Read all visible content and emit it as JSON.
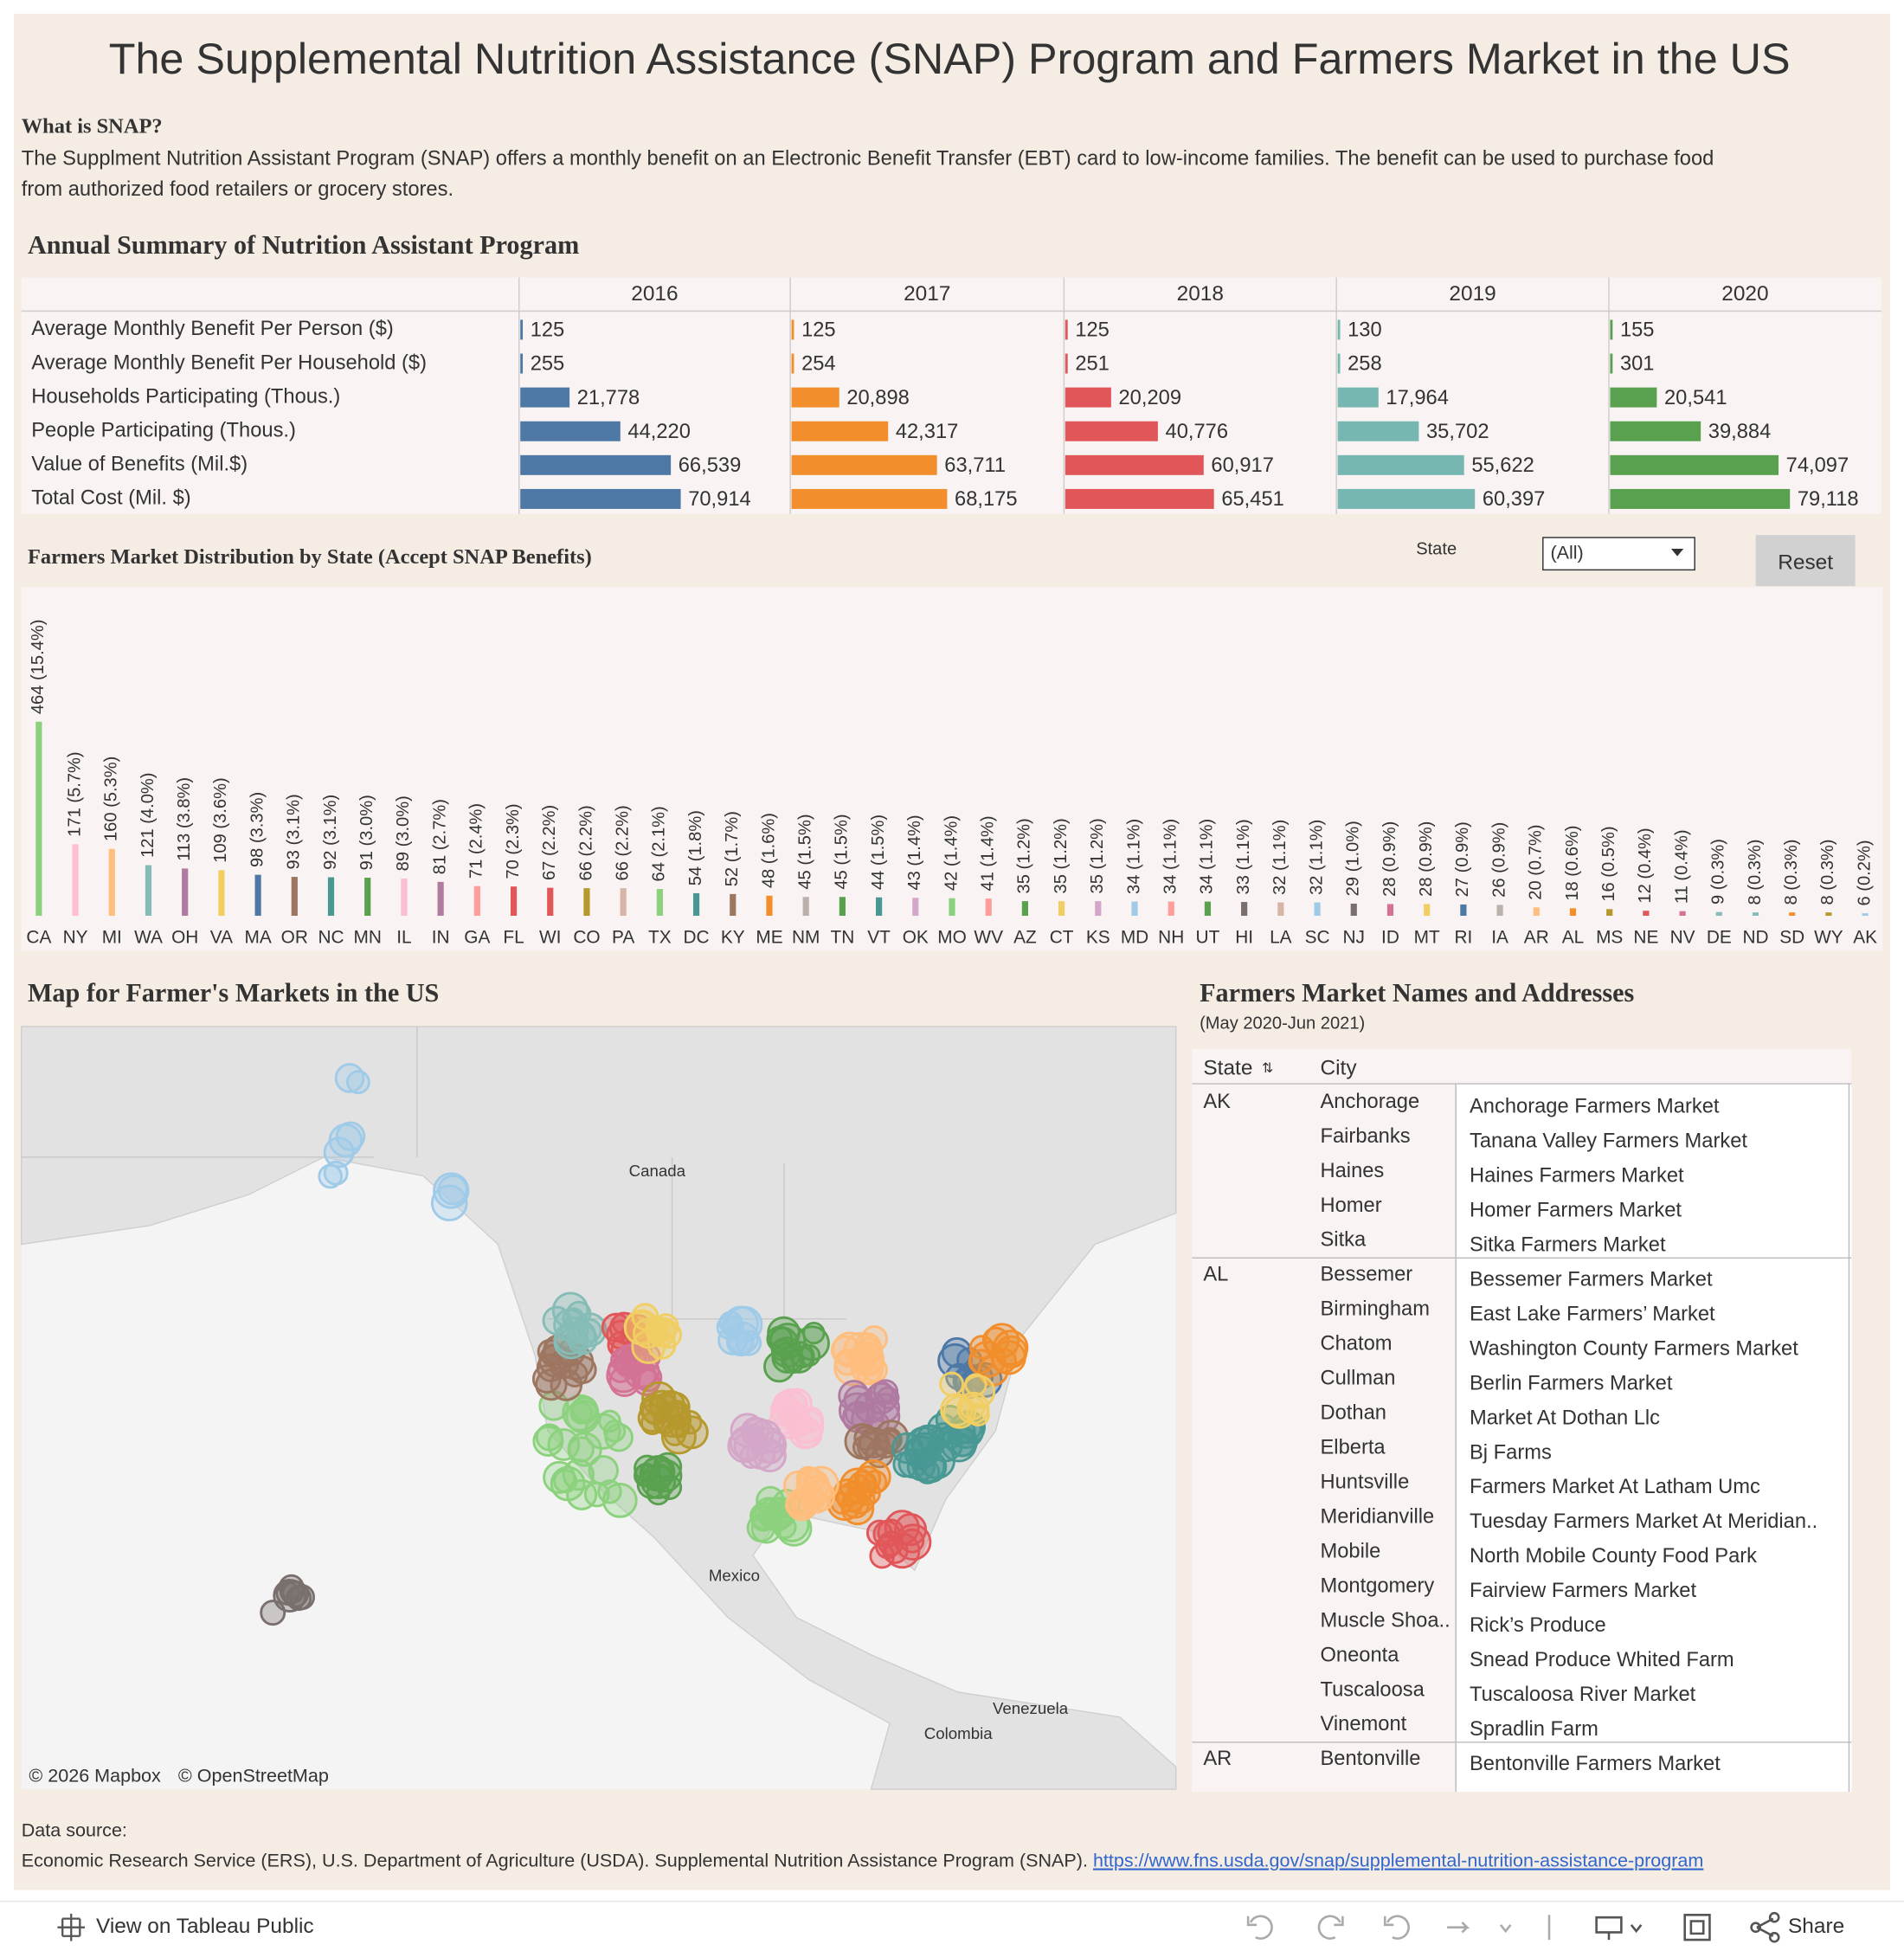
{
  "header": {
    "title": "The Supplemental Nutrition Assistance (SNAP) Program and Farmers Market in the US",
    "intro_heading": "What is SNAP?",
    "intro_lines": [
      "The Supplment Nutrition Assistant Program (SNAP) offers a monthly benefit on an Electronic Benefit Transfer (EBT) card to low-income families. The benefit can be used to purchase food",
      "from authorized food retailers or grocery stores."
    ]
  },
  "chart_data": [
    {
      "type": "bar",
      "orientation": "horizontal",
      "title": "Annual Summary of Nutrition Assistant Program",
      "categories": [
        "Average Monthly Benefit Per Person ($)",
        "Average Monthly Benefit Per Household ($)",
        "Households Participating (Thous.)",
        "People Participating (Thous.)",
        "Value of Benefits (Mil.$)",
        "Total Cost (Mil. $)"
      ],
      "series": [
        {
          "name": "2016",
          "color": "#4e79a7",
          "values": [
            125,
            255,
            21778,
            44220,
            66539,
            70914
          ],
          "value_labels": [
            "125",
            "255",
            "21,778",
            "44,220",
            "66,539",
            "70,914"
          ]
        },
        {
          "name": "2017",
          "color": "#f28e2b",
          "values": [
            125,
            254,
            20898,
            42317,
            63711,
            68175
          ],
          "value_labels": [
            "125",
            "254",
            "20,898",
            "42,317",
            "63,711",
            "68,175"
          ]
        },
        {
          "name": "2018",
          "color": "#e15759",
          "values": [
            125,
            251,
            20209,
            40776,
            60917,
            65451
          ],
          "value_labels": [
            "125",
            "251",
            "20,209",
            "40,776",
            "60,917",
            "65,451"
          ]
        },
        {
          "name": "2019",
          "color": "#76b7b2",
          "values": [
            130,
            258,
            17964,
            35702,
            55622,
            60397
          ],
          "value_labels": [
            "130",
            "258",
            "17,964",
            "35,702",
            "55,622",
            "60,397"
          ]
        },
        {
          "name": "2020",
          "color": "#59a14f",
          "values": [
            155,
            301,
            20541,
            39884,
            74097,
            79118
          ],
          "value_labels": [
            "155",
            "301",
            "20,541",
            "39,884",
            "74,097",
            "79,118"
          ]
        }
      ]
    },
    {
      "type": "bar",
      "orientation": "vertical",
      "title": "Farmers Market Distribution by State (Accept SNAP Benefits)",
      "categories": [
        "CA",
        "NY",
        "MI",
        "WA",
        "OH",
        "VA",
        "MA",
        "OR",
        "NC",
        "MN",
        "IL",
        "IN",
        "GA",
        "FL",
        "WI",
        "CO",
        "PA",
        "TX",
        "DC",
        "KY",
        "ME",
        "NM",
        "TN",
        "VT",
        "OK",
        "MO",
        "WV",
        "AZ",
        "CT",
        "KS",
        "MD",
        "NH",
        "UT",
        "HI",
        "LA",
        "SC",
        "NJ",
        "ID",
        "MT",
        "RI",
        "IA",
        "AR",
        "AL",
        "MS",
        "NE",
        "NV",
        "DE",
        "ND",
        "SD",
        "WY",
        "AK"
      ],
      "values": [
        464,
        171,
        160,
        121,
        113,
        109,
        98,
        93,
        92,
        91,
        89,
        81,
        71,
        70,
        67,
        66,
        66,
        64,
        54,
        52,
        48,
        45,
        45,
        44,
        43,
        42,
        41,
        35,
        35,
        35,
        34,
        34,
        34,
        33,
        32,
        32,
        29,
        28,
        28,
        27,
        26,
        20,
        18,
        16,
        12,
        11,
        9,
        8,
        8,
        8,
        6
      ],
      "value_labels": [
        "464 (15.4%)",
        "171 (5.7%)",
        "160 (5.3%)",
        "121 (4.0%)",
        "113 (3.8%)",
        "109 (3.6%)",
        "98 (3.3%)",
        "93 (3.1%)",
        "92 (3.1%)",
        "91 (3.0%)",
        "89 (3.0%)",
        "81 (2.7%)",
        "71 (2.4%)",
        "70 (2.3%)",
        "67 (2.2%)",
        "66 (2.2%)",
        "66 (2.2%)",
        "64 (2.1%)",
        "54 (1.8%)",
        "52 (1.7%)",
        "48 (1.6%)",
        "45 (1.5%)",
        "45 (1.5%)",
        "44 (1.5%)",
        "43 (1.4%)",
        "42 (1.4%)",
        "41 (1.4%)",
        "35 (1.2%)",
        "35 (1.2%)",
        "35 (1.2%)",
        "34 (1.1%)",
        "34 (1.1%)",
        "34 (1.1%)",
        "33 (1.1%)",
        "32 (1.1%)",
        "32 (1.1%)",
        "29 (1.0%)",
        "28 (0.9%)",
        "28 (0.9%)",
        "27 (0.9%)",
        "26 (0.9%)",
        "20 (0.7%)",
        "18 (0.6%)",
        "16 (0.5%)",
        "12 (0.4%)",
        "11 (0.4%)",
        "9 (0.3%)",
        "8 (0.3%)",
        "8 (0.3%)",
        "8 (0.3%)",
        "6 (0.2%)"
      ],
      "colors": [
        "#8cd17d",
        "#ffbed2",
        "#ffbe7d",
        "#86bcb6",
        "#b07aa1",
        "#f1ce63",
        "#4e79a7",
        "#9d7660",
        "#499894",
        "#59a14f",
        "#fabfd2",
        "#b07aa1",
        "#ff9d9a",
        "#e15759",
        "#e15759",
        "#b6992d",
        "#d7b5a6",
        "#8cd17d",
        "#499894",
        "#9d7660",
        "#f28e2b",
        "#bab0ac",
        "#59a14f",
        "#499894",
        "#d4a6c8",
        "#8cd17d",
        "#ff9d9a",
        "#59a14f",
        "#f1ce63",
        "#d4a6c8",
        "#a0cbe8",
        "#ff9d9a",
        "#59a14f",
        "#79706e",
        "#d7b5a6",
        "#a0cbe8",
        "#79706e",
        "#d37295",
        "#f1ce63",
        "#4e79a7",
        "#bab0ac",
        "#ffbe7d",
        "#f28e2b",
        "#b6992d",
        "#e15759",
        "#d37295",
        "#86bcb6",
        "#86bcb6",
        "#f28e2b",
        "#b6992d",
        "#a0cbe8"
      ]
    }
  ],
  "filter": {
    "label": "State",
    "value": "(All)",
    "button": "Reset"
  },
  "map": {
    "title": "Map for Farmer's Markets in the US",
    "labels": [
      "Canada",
      "Mexico",
      "Venezuela",
      "Colombia"
    ],
    "attribution": [
      "© 2026 Mapbox",
      "© OpenStreetMap"
    ]
  },
  "table": {
    "title": "Farmers Market Names and Addresses",
    "subtitle": "(May 2020-Jun 2021)",
    "headers": [
      "State",
      "City"
    ],
    "groups": [
      {
        "state": "AK",
        "rows": [
          [
            "Anchorage",
            "Anchorage Farmers Market"
          ],
          [
            "Fairbanks",
            "Tanana Valley Farmers Market"
          ],
          [
            "Haines",
            "Haines Farmers Market"
          ],
          [
            "Homer",
            "Homer Farmers Market"
          ],
          [
            "Sitka",
            "Sitka Farmers Market"
          ]
        ]
      },
      {
        "state": "AL",
        "rows": [
          [
            "Bessemer",
            "Bessemer Farmers Market"
          ],
          [
            "Birmingham",
            "East Lake Farmers’ Market"
          ],
          [
            "Chatom",
            "Washington County Farmers Market"
          ],
          [
            "Cullman",
            "Berlin Farmers Market"
          ],
          [
            "Dothan",
            "Market At Dothan Llc"
          ],
          [
            "Elberta",
            "Bj Farms"
          ],
          [
            "Huntsville",
            "Farmers Market At Latham Umc"
          ],
          [
            "Meridianville",
            "Tuesday Farmers Market At Meridian.."
          ],
          [
            "Mobile",
            "North Mobile County Food Park"
          ],
          [
            "Montgomery",
            "Fairview Farmers Market"
          ],
          [
            "Muscle Shoa..",
            "Rick’s Produce"
          ],
          [
            "Oneonta",
            "Snead Produce   Whited Farm"
          ],
          [
            "Tuscaloosa",
            "Tuscaloosa River Market"
          ],
          [
            "Vinemont",
            "Spradlin Farm"
          ]
        ]
      },
      {
        "state": "AR",
        "rows": [
          [
            "Bentonville",
            "Bentonville Farmers Market"
          ]
        ]
      }
    ]
  },
  "footer": {
    "label": "Data source:",
    "text": "Economic Research Service (ERS), U.S. Department of Agriculture (USDA). Supplemental Nutrition Assistance Program (SNAP). ",
    "link": "https://www.fns.usda.gov/snap/supplemental-nutrition-assistance-program"
  },
  "toolbar": {
    "view": "View on Tableau Public",
    "share": "Share"
  }
}
